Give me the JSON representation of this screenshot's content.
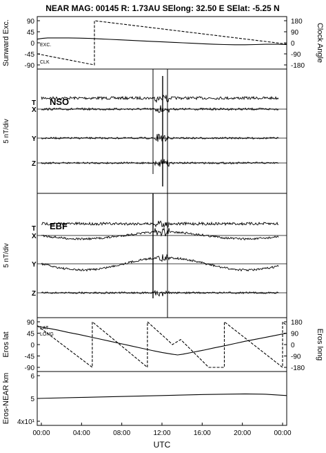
{
  "header": {
    "title": "NEAR MAG: 00145  R: 1.73AU  SElong:   32.50 E  SElat:   -5.25 N"
  },
  "chart_data": [
    {
      "panel": "sunward",
      "type": "line",
      "left_axis_label": "Sunward Exc.",
      "right_axis_label": "Clock Angle",
      "left_ticks": [
        "90",
        "45",
        "0",
        "-45",
        "-90"
      ],
      "right_ticks": [
        "180",
        "90",
        "0",
        "-90",
        "-180"
      ],
      "ylim_left": [
        -90,
        90
      ],
      "ylim_right": [
        -180,
        180
      ],
      "series": [
        {
          "name": "EXC.",
          "axis": "left",
          "dash": "solid",
          "x": [
            0,
            0.5,
            1,
            2,
            3,
            4,
            5,
            6,
            7,
            8,
            9,
            10,
            11,
            12,
            13,
            14,
            15,
            16,
            17,
            18,
            19,
            20,
            21,
            22,
            23,
            24
          ],
          "y": [
            15,
            18,
            20,
            20,
            20,
            19,
            18,
            16,
            14,
            12,
            10,
            8,
            6,
            4,
            2,
            0,
            -2,
            -4,
            -6,
            -7,
            -8,
            -8,
            -7,
            -6,
            -6,
            -7
          ]
        },
        {
          "name": "CLK",
          "axis": "right",
          "dash": "dashed",
          "x": [
            0,
            5.5,
            5.5,
            24
          ],
          "y": [
            -90,
            -180,
            180,
            -10
          ]
        }
      ]
    },
    {
      "panel": "nso",
      "type": "line",
      "label": "NSO",
      "left_axis_label": "5 nT/div",
      "trace_labels": [
        "T",
        "X",
        "Y",
        "Z"
      ]
    },
    {
      "panel": "ebf",
      "type": "line",
      "label": "EBF",
      "left_axis_label": "5 nT/div",
      "trace_labels": [
        "T",
        "X",
        "Y",
        "Z"
      ]
    },
    {
      "panel": "eros",
      "type": "line",
      "left_axis_label": "Eros lat",
      "right_axis_label": "Eros long",
      "left_ticks": [
        "90",
        "45",
        "0",
        "-45",
        "-90"
      ],
      "right_ticks": [
        "180",
        "90",
        "0",
        "-90",
        "-180"
      ],
      "ylim_left": [
        -90,
        90
      ],
      "ylim_right": [
        -180,
        180
      ],
      "series_labels": [
        "LAT",
        "LONG"
      ],
      "series": [
        {
          "name": "LAT",
          "axis": "left",
          "dash": "solid",
          "x": [
            0,
            1,
            2,
            3,
            4,
            5,
            6,
            7,
            8,
            9,
            10,
            11,
            12,
            13,
            13.5,
            14,
            15,
            16,
            17,
            18,
            19,
            20,
            21,
            22,
            23,
            24
          ],
          "y": [
            72,
            65,
            57,
            48,
            40,
            31,
            22,
            13,
            4,
            -5,
            -14,
            -23,
            -31,
            -38,
            -41,
            -38,
            -30,
            -22,
            -13,
            -5,
            4,
            13,
            21,
            29,
            37,
            45
          ]
        },
        {
          "name": "LONG",
          "axis": "right",
          "dash": "dashed",
          "x": [
            0,
            5.3,
            5.3,
            10.6,
            10.6,
            12.5,
            13.0,
            13.8,
            16.5,
            18.0,
            18.0,
            23.6,
            23.6,
            24
          ],
          "y": [
            150,
            -180,
            180,
            -180,
            180,
            40,
            0,
            40,
            -180,
            -180,
            180,
            -180,
            180,
            150
          ]
        }
      ]
    },
    {
      "panel": "distance",
      "type": "line",
      "left_axis_label": "Eros-NEAR km",
      "left_ticks": [
        "6",
        "5",
        "4x10¹"
      ],
      "ylim_left": [
        36,
        64
      ],
      "series": [
        {
          "name": "",
          "axis": "left",
          "dash": "solid",
          "x": [
            0,
            4,
            8,
            12,
            16,
            20,
            22,
            24
          ],
          "y": [
            50,
            50.6,
            51.2,
            51.8,
            52.4,
            52.8,
            52.6,
            51.8
          ]
        }
      ]
    }
  ],
  "x_axis": {
    "label": "UTC",
    "ticks": [
      "00:00",
      "04:00",
      "08:00",
      "12:00",
      "16:00",
      "20:00",
      "00:00"
    ],
    "xlim": [
      0,
      24
    ]
  }
}
